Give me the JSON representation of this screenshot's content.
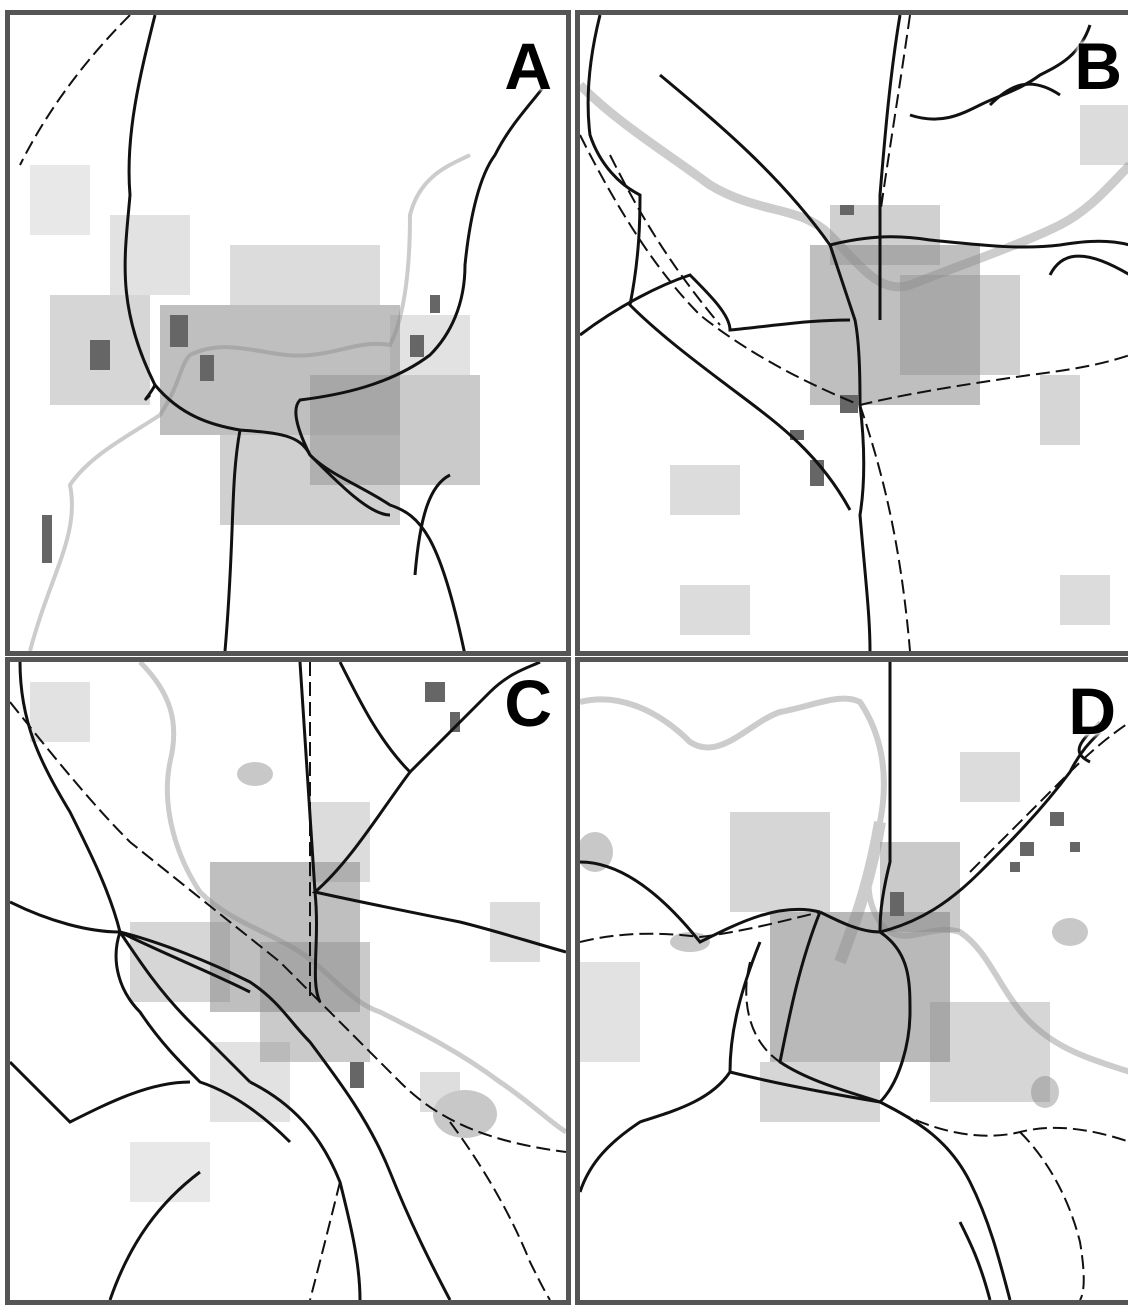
{
  "panels": [
    {
      "id": "A",
      "label": "A"
    },
    {
      "id": "B",
      "label": "B"
    },
    {
      "id": "C",
      "label": "C"
    },
    {
      "id": "D",
      "label": "D"
    }
  ],
  "colors": {
    "frame": "#555555",
    "road": "#111111",
    "railway": "#111111",
    "river": "#cccccc",
    "building": "#8a8a8a",
    "industrial": "#666666",
    "green_area": "#c8c8c8",
    "background": "#ffffff"
  },
  "legend_icons": [
    "road-line",
    "railway-dashed-line",
    "river-line",
    "building-block"
  ]
}
